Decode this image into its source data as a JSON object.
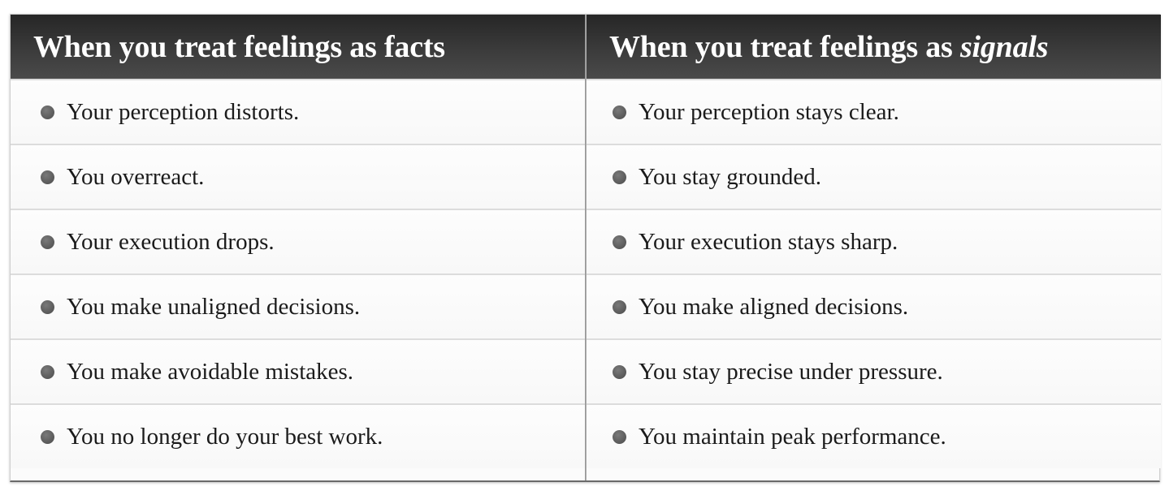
{
  "left": {
    "header": "When you treat feelings as facts",
    "items": [
      "Your perception distorts.",
      "You overreact.",
      "Your execution drops.",
      "You make unaligned decisions.",
      "You make avoidable mistakes.",
      "You no longer do your best work."
    ]
  },
  "right": {
    "header_prefix": "When you treat feelings as ",
    "header_emphasis": "signals",
    "items": [
      "Your perception stays clear.",
      "You stay grounded.",
      "Your execution stays sharp.",
      "You make aligned decisions.",
      "You stay precise under pressure.",
      "You maintain peak performance."
    ]
  }
}
